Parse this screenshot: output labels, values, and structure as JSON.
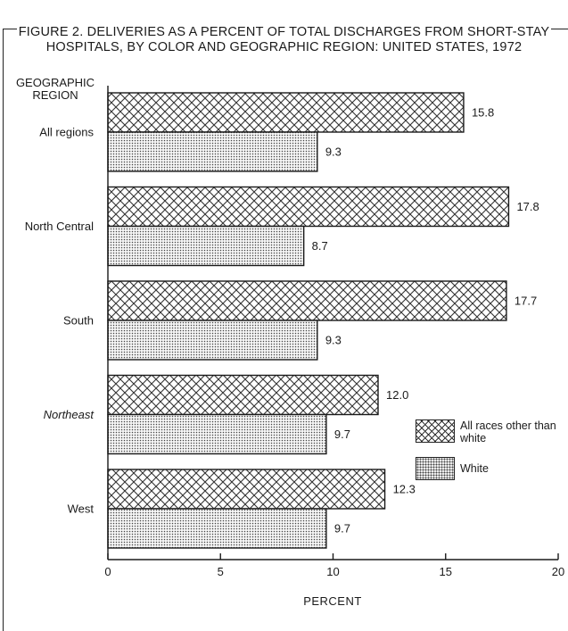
{
  "figure": {
    "title_line1": "FIGURE 2. DELIVERIES AS A PERCENT OF TOTAL DISCHARGES FROM SHORT-STAY",
    "title_line2": "HOSPITALS, BY COLOR AND GEOGRAPHIC REGION: UNITED STATES, 1972"
  },
  "chart_data": {
    "type": "bar",
    "orientation": "horizontal",
    "y_header": [
      "GEOGRAPHIC",
      "REGION"
    ],
    "categories": [
      "All regions",
      "North Central",
      "South",
      "Northeast",
      "West"
    ],
    "series": [
      {
        "name": "All races other than white",
        "values": [
          15.8,
          17.8,
          17.7,
          12.0,
          12.3
        ],
        "pattern": "crosshatch"
      },
      {
        "name": "White",
        "values": [
          9.3,
          8.7,
          9.3,
          9.7,
          9.7
        ],
        "pattern": "dots"
      }
    ],
    "value_labels": [
      [
        "15.8",
        "17.8",
        "17.7",
        "12.0",
        "12.3"
      ],
      [
        "9.3",
        "8.7",
        "9.3",
        "9.7",
        "9.7"
      ]
    ],
    "xlabel": "PERCENT",
    "xlim": [
      0,
      20
    ],
    "xticks": [
      "0",
      "5",
      "10",
      "15",
      "20"
    ],
    "legend_position": "right, between Northeast and West",
    "grid": false
  },
  "legend": {
    "item1_label": "All races other than white",
    "item2_label": "White"
  },
  "colors": {
    "ink": "#1a1a1a",
    "bar_fill": "#ffffff"
  }
}
